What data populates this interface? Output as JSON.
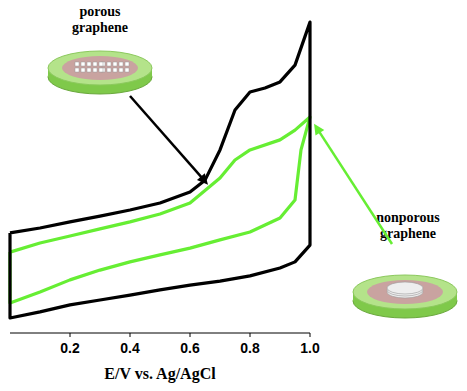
{
  "chart_data": {
    "type": "line",
    "x_label": "E/V vs. Ag/AgCl",
    "xlim": [
      0,
      1
    ],
    "xticks": [
      0.2,
      0.4,
      0.6,
      {
        "value": 0.8,
        "label": "0.8"
      },
      {
        "value": 1,
        "label": "1.0"
      }
    ],
    "ylim": [
      0,
      100
    ],
    "tick_labels": "x",
    "grid": false,
    "series": [
      {
        "name": "porous graphene",
        "color": "#000000",
        "line_style": "solid",
        "x": [
          0.0,
          0.1,
          0.2,
          0.3,
          0.4,
          0.5,
          0.6,
          0.65,
          0.7,
          0.75,
          0.8,
          0.85,
          0.9,
          0.95,
          1.0,
          1.0,
          0.95,
          0.9,
          0.8,
          0.7,
          0.6,
          0.5,
          0.4,
          0.3,
          0.2,
          0.1,
          0.0,
          0.0
        ],
        "values": [
          30.2,
          31.8,
          33.8,
          35.7,
          37.7,
          40.0,
          43.6,
          47.5,
          57.4,
          70.5,
          76.4,
          77.7,
          79.7,
          85.2,
          99.3,
          26.2,
          20.7,
          18.7,
          16.1,
          14.4,
          13.1,
          11.5,
          9.8,
          8.2,
          6.6,
          4.3,
          2.3,
          30.2
        ]
      },
      {
        "name": "nonporous graphene",
        "color": "#66ee33",
        "line_style": "solid",
        "x": [
          0.0,
          0.1,
          0.2,
          0.3,
          0.4,
          0.5,
          0.6,
          0.7,
          0.75,
          0.8,
          0.9,
          0.95,
          1.0,
          0.97,
          0.95,
          0.9,
          0.8,
          0.7,
          0.6,
          0.5,
          0.4,
          0.3,
          0.2,
          0.1,
          0.0,
          0.0
        ],
        "values": [
          23.9,
          26.9,
          29.2,
          31.5,
          33.8,
          36.4,
          40.0,
          48.2,
          54.1,
          57.4,
          60.7,
          63.9,
          68.2,
          57.4,
          41.0,
          35.1,
          30.5,
          27.9,
          25.2,
          23.0,
          20.7,
          18.0,
          14.8,
          10.8,
          7.2,
          23.9
        ]
      }
    ]
  }
}
